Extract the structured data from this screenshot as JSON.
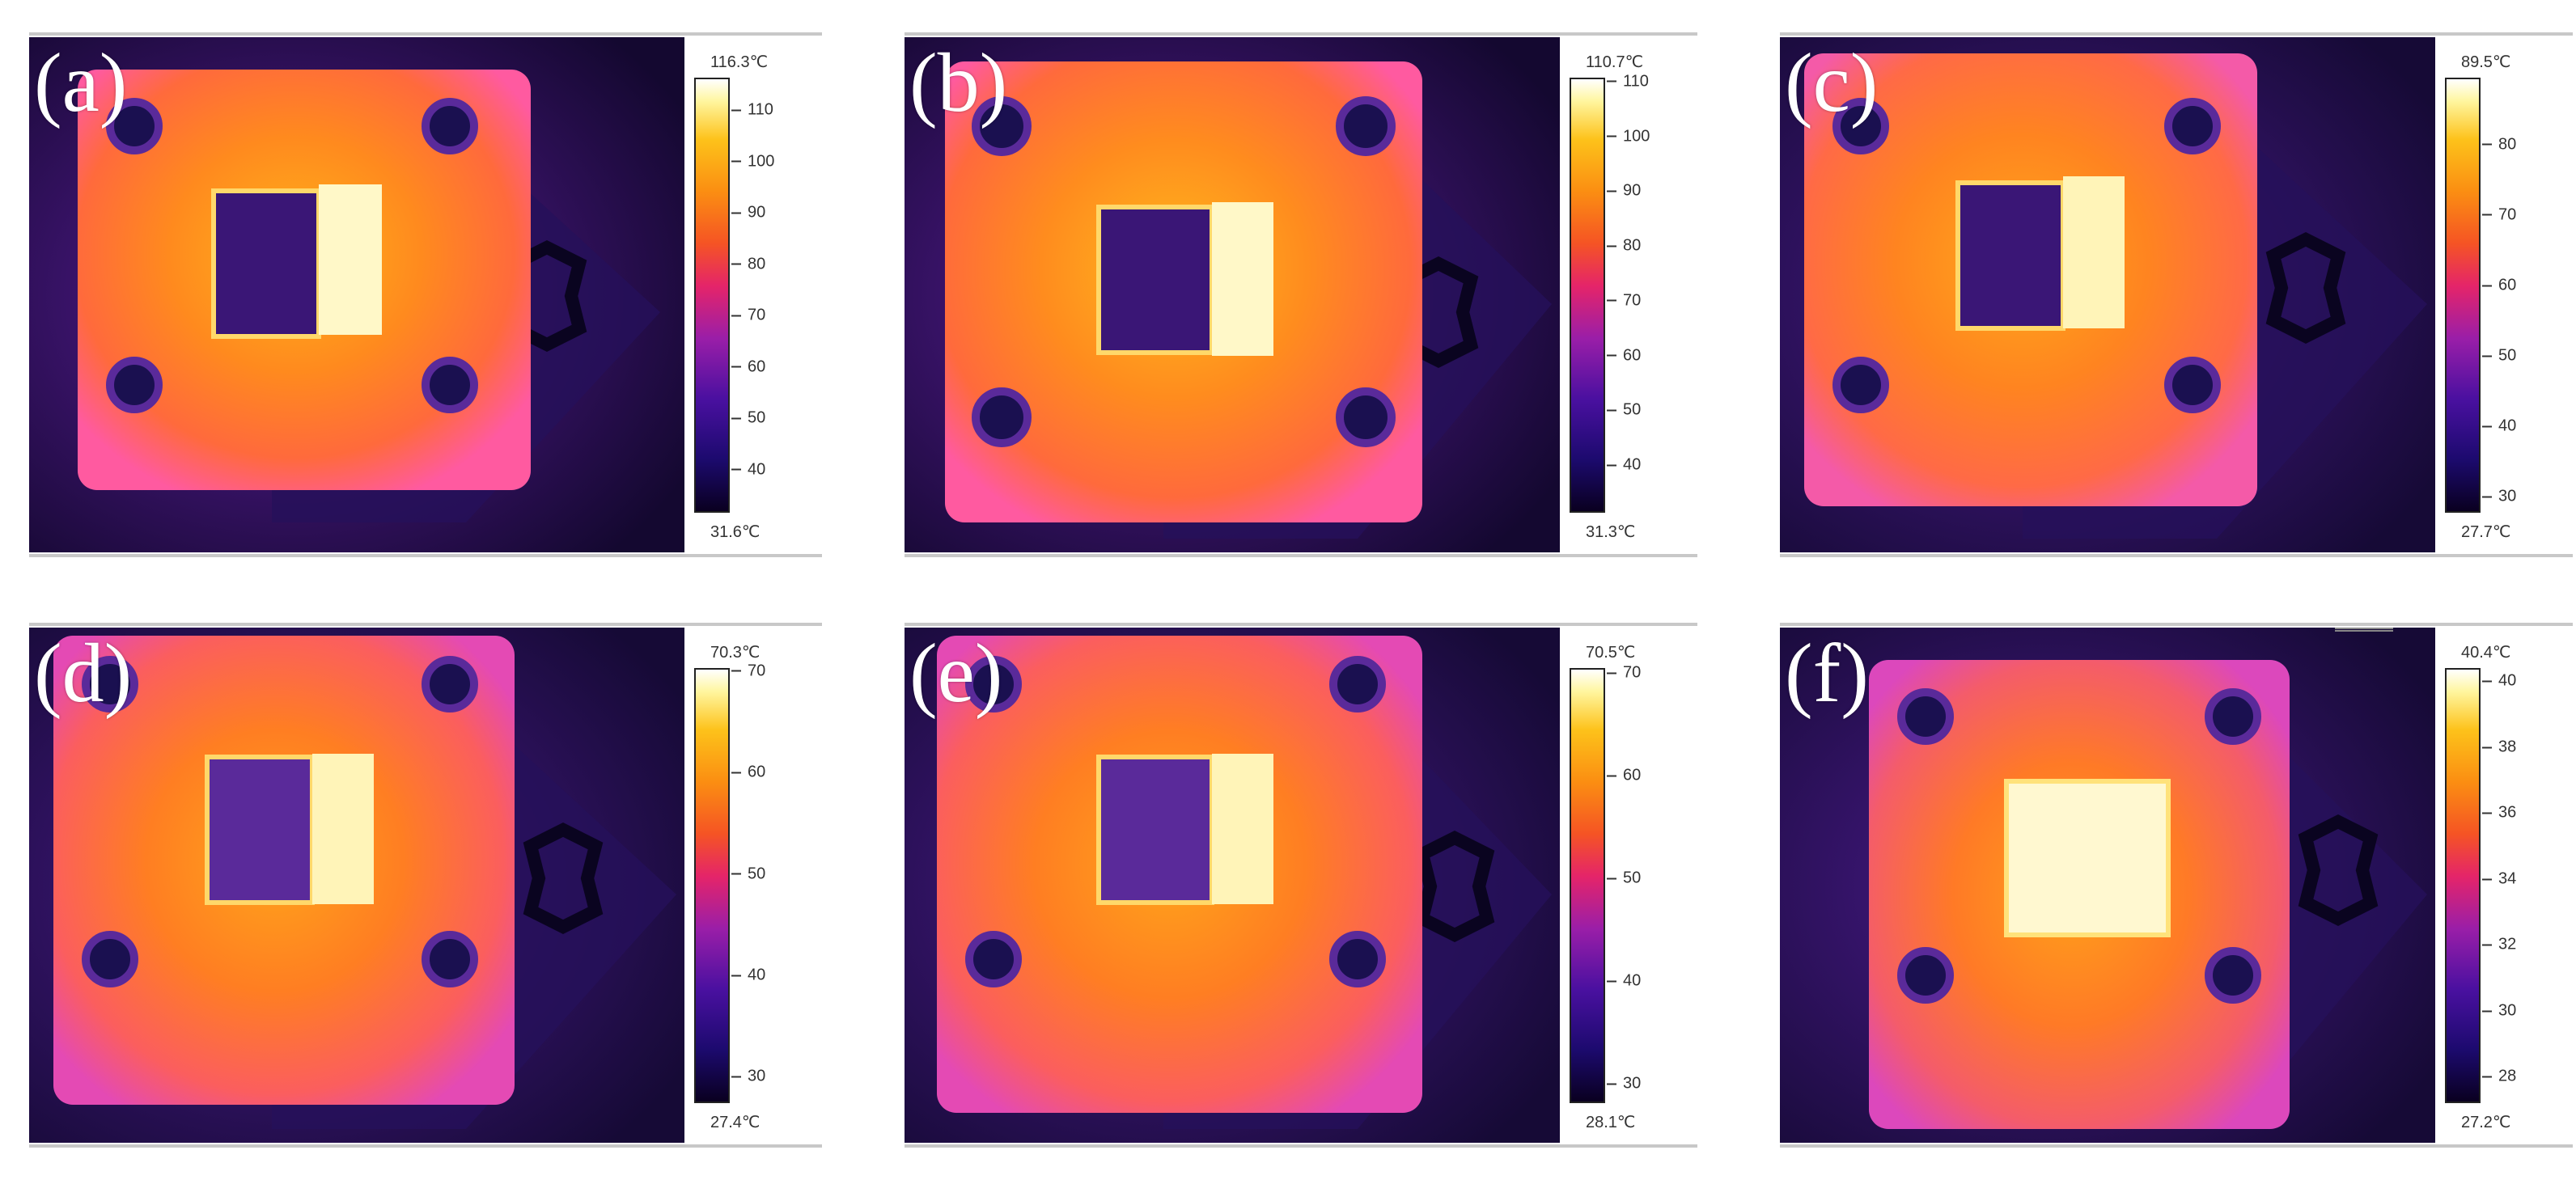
{
  "panels": [
    {
      "label": "(a)",
      "max": "116.3℃",
      "min": "31.6℃",
      "vmin": 31.6,
      "vmax": 116.3,
      "ticks": [
        "40",
        "50",
        "60",
        "70",
        "80",
        "90",
        "100",
        "110"
      ]
    },
    {
      "label": "(b)",
      "max": "110.7℃",
      "min": "31.3℃",
      "vmin": 31.3,
      "vmax": 110.7,
      "ticks": [
        "40",
        "50",
        "60",
        "70",
        "80",
        "90",
        "100",
        "110"
      ]
    },
    {
      "label": "(c)",
      "max": "89.5℃",
      "min": "27.7℃",
      "vmin": 27.7,
      "vmax": 89.5,
      "ticks": [
        "30",
        "40",
        "50",
        "60",
        "70",
        "80"
      ]
    },
    {
      "label": "(d)",
      "max": "70.3℃",
      "min": "27.4℃",
      "vmin": 27.4,
      "vmax": 70.3,
      "ticks": [
        "30",
        "40",
        "50",
        "60",
        "70"
      ]
    },
    {
      "label": "(e)",
      "max": "70.5℃",
      "min": "28.1℃",
      "vmin": 28.1,
      "vmax": 70.5,
      "ticks": [
        "30",
        "40",
        "50",
        "60",
        "70"
      ]
    },
    {
      "label": "(f)",
      "max": "40.4℃",
      "min": "27.2℃",
      "vmin": 27.2,
      "vmax": 40.4,
      "ticks": [
        "28",
        "30",
        "32",
        "34",
        "36",
        "38",
        "40"
      ]
    }
  ],
  "colors": {
    "background": "#14082e",
    "block_edge": "#ff5aa0",
    "block_mid": "#ff8a1e",
    "block_core": "#ffb31a",
    "hot_spot": "#fff8c8",
    "cold_window": "#3a1676",
    "bolt": "#1a1050"
  }
}
